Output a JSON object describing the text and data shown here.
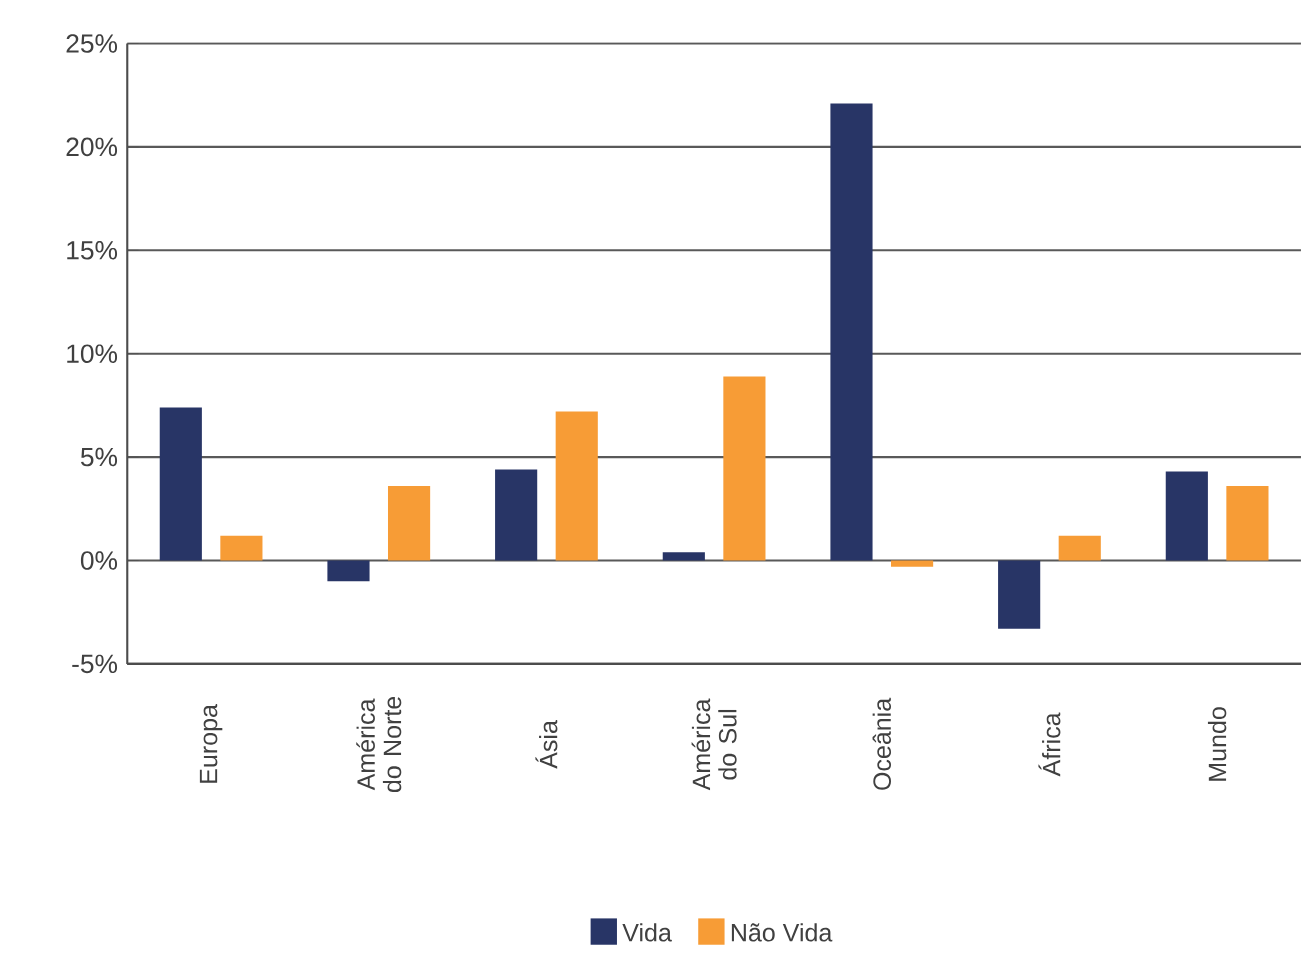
{
  "chart_data": {
    "type": "bar",
    "categories": [
      "Europa",
      "América do Norte",
      "Ásia",
      "América do Sul",
      "Oceânia",
      "África",
      "Mundo"
    ],
    "series": [
      {
        "name": "Vida",
        "color": "#283566",
        "values": [
          7.4,
          -1.0,
          4.4,
          0.4,
          22.1,
          -3.3,
          4.3
        ]
      },
      {
        "name": "Não Vida",
        "color": "#f79c36",
        "values": [
          1.2,
          3.6,
          7.2,
          8.9,
          -0.3,
          1.2,
          3.6
        ]
      }
    ],
    "ylim": [
      -5,
      25
    ],
    "yticks": [
      {
        "value": -5,
        "label": "-5%"
      },
      {
        "value": 0,
        "label": "0%"
      },
      {
        "value": 5,
        "label": "5%"
      },
      {
        "value": 10,
        "label": "10%"
      },
      {
        "value": 15,
        "label": "15%"
      },
      {
        "value": 20,
        "label": "20%"
      },
      {
        "value": 25,
        "label": "25%"
      }
    ],
    "grid": "y",
    "legend": "bottom"
  }
}
